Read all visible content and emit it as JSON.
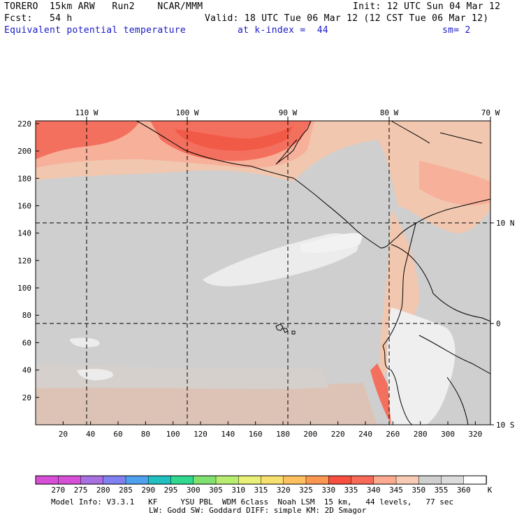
{
  "header": {
    "model": "TORERO  15km ARW   Run2    NCAR/MMM",
    "init": "Init: 12 UTC Sun 04 Mar 12",
    "fcst": "Fcst:   54 h",
    "valid": "Valid: 18 UTC Tue 06 Mar 12 (12 CST Tue 06 Mar 12)",
    "field": "Equivalent potential temperature",
    "level": "at k-index =  44",
    "smooth": "sm= 2"
  },
  "axes": {
    "top_lon": [
      "110 W",
      "100 W",
      "90 W",
      "80 W",
      "70 W"
    ],
    "right_lat": [
      "10 N",
      "0",
      "10 S"
    ],
    "x_ticks": [
      "20",
      "40",
      "60",
      "80",
      "100",
      "120",
      "140",
      "160",
      "180",
      "200",
      "220",
      "240",
      "260",
      "280",
      "300",
      "320"
    ],
    "y_ticks": [
      "20",
      "40",
      "60",
      "80",
      "100",
      "120",
      "140",
      "160",
      "180",
      "200",
      "220"
    ]
  },
  "colorbar": {
    "labels": [
      "270",
      "275",
      "280",
      "285",
      "290",
      "295",
      "300",
      "305",
      "310",
      "315",
      "320",
      "325",
      "330",
      "335",
      "340",
      "345",
      "350",
      "355",
      "360"
    ],
    "unit": "K",
    "colors": [
      "#d64fd6",
      "#a870e0",
      "#8080f0",
      "#50a0f0",
      "#20c0c0",
      "#30d890",
      "#80e070",
      "#b8ee70",
      "#e8f078",
      "#f8e070",
      "#fcc060",
      "#fc9650",
      "#f85040",
      "#f86a58",
      "#fcaa90",
      "#f8ccb4",
      "#d0d0d0",
      "#dcdcdc",
      "#f2f2f2"
    ]
  },
  "footer": {
    "line1": "Model Info: V3.3.1   KF     YSU PBL  WDM 6class  Noah LSM  15 km,   44 levels,   77 sec",
    "line2": "LW: Godd SW: Goddard DIFF: simple KM: 2D Smagor"
  }
}
